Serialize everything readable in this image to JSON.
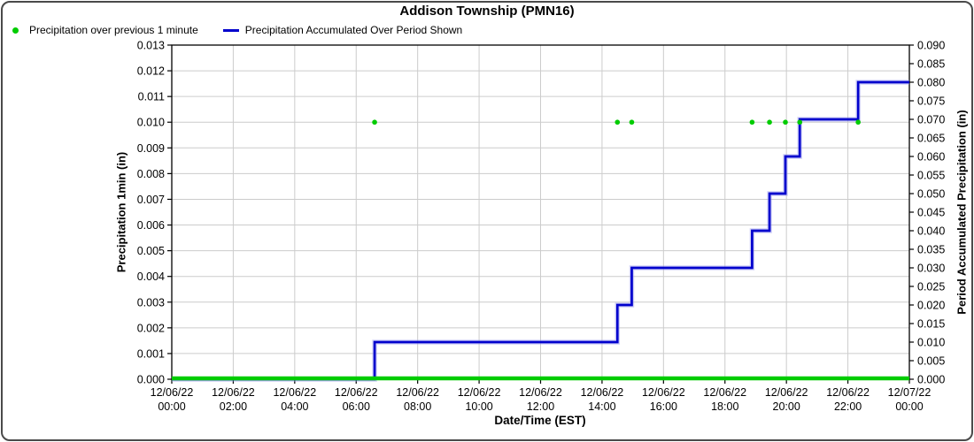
{
  "title": "Addison Township (PMN16)",
  "legend": {
    "items": [
      {
        "label": "Precipitation over previous 1 minute",
        "marker": "dot",
        "color": "#00cc00"
      },
      {
        "label": "Precipitation Accumulated Over Period Shown",
        "marker": "line",
        "color": "#0000cc"
      }
    ]
  },
  "chart_data": {
    "type": "line",
    "title": "Addison Township (PMN16)",
    "xlabel": "Date/Time (EST)",
    "ylabel_left": "Precipitation 1min (in)",
    "ylabel_right": "Period Accumulated Precipitation (in)",
    "x_range_hours": [
      0,
      24
    ],
    "ylim_left": [
      0,
      0.013
    ],
    "ylim_right": [
      0,
      0.09
    ],
    "grid": true,
    "legend_position": "top-left",
    "colors": {
      "grid": "#cccccc",
      "axis": "#000000",
      "dots": "#00cc00",
      "line": "#0101cd",
      "halo": "#9999ee"
    },
    "x_ticks": [
      {
        "date": "12/06/22",
        "time": "00:00",
        "hour": 0
      },
      {
        "date": "12/06/22",
        "time": "02:00",
        "hour": 2
      },
      {
        "date": "12/06/22",
        "time": "04:00",
        "hour": 4
      },
      {
        "date": "12/06/22",
        "time": "06:00",
        "hour": 6
      },
      {
        "date": "12/06/22",
        "time": "08:00",
        "hour": 8
      },
      {
        "date": "12/06/22",
        "time": "10:00",
        "hour": 10
      },
      {
        "date": "12/06/22",
        "time": "12:00",
        "hour": 12
      },
      {
        "date": "12/06/22",
        "time": "14:00",
        "hour": 14
      },
      {
        "date": "12/06/22",
        "time": "16:00",
        "hour": 16
      },
      {
        "date": "12/06/22",
        "time": "18:00",
        "hour": 18
      },
      {
        "date": "12/06/22",
        "time": "20:00",
        "hour": 20
      },
      {
        "date": "12/06/22",
        "time": "22:00",
        "hour": 22
      },
      {
        "date": "12/07/22",
        "time": "00:00",
        "hour": 24
      }
    ],
    "y_ticks_left": [
      "0.000",
      "0.001",
      "0.002",
      "0.003",
      "0.004",
      "0.005",
      "0.006",
      "0.007",
      "0.008",
      "0.009",
      "0.010",
      "0.011",
      "0.012",
      "0.013"
    ],
    "y_ticks_right": [
      "0.000",
      "0.005",
      "0.010",
      "0.015",
      "0.020",
      "0.025",
      "0.030",
      "0.035",
      "0.040",
      "0.045",
      "0.050",
      "0.055",
      "0.060",
      "0.065",
      "0.070",
      "0.075",
      "0.080",
      "0.085",
      "0.090"
    ],
    "series": [
      {
        "name": "Precipitation over previous 1 minute",
        "axis": "left",
        "style": "dots",
        "color": "#00cc00",
        "baseline_value": 0.0,
        "dot_value": 0.01,
        "dot_times": [
          "06:36",
          "14:30",
          "14:58",
          "18:53",
          "19:27",
          "19:58",
          "20:26",
          "22:20"
        ]
      },
      {
        "name": "Precipitation Accumulated Over Period Shown",
        "axis": "right",
        "style": "step",
        "color": "#0101cd",
        "start": {
          "time": "00:00",
          "value": 0.0
        },
        "steps": [
          {
            "time": "06:36",
            "value": 0.01
          },
          {
            "time": "14:30",
            "value": 0.02
          },
          {
            "time": "14:58",
            "value": 0.03
          },
          {
            "time": "18:53",
            "value": 0.04
          },
          {
            "time": "19:27",
            "value": 0.05
          },
          {
            "time": "19:58",
            "value": 0.06
          },
          {
            "time": "20:26",
            "value": 0.07
          },
          {
            "time": "22:20",
            "value": 0.08
          }
        ],
        "end": {
          "time": "24:00",
          "value": 0.08
        }
      }
    ]
  }
}
